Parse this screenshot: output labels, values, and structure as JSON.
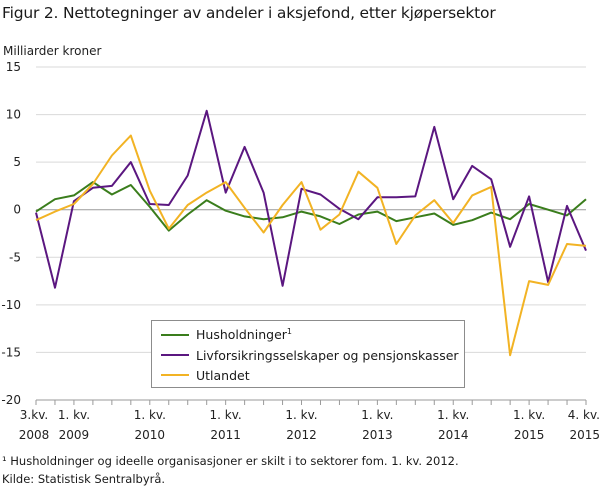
{
  "title": "Figur 2. Nettotegninger av andeler i aksjefond, etter kjøpersektor",
  "ylabel": "Milliarder  kroner",
  "footnote": "¹ Husholdninger og ideelle organisasjoner er skilt i to sektorer fom. 1. kv. 2012.",
  "source": "Kilde: Statistisk Sentralbyrå.",
  "chart_data": {
    "type": "line",
    "ylim": [
      -20,
      15
    ],
    "yticks": [
      15,
      10,
      5,
      0,
      -5,
      -10,
      -15,
      -20
    ],
    "grid": true,
    "legend_position": "bottom-center",
    "x": [
      "3.kv. 2008",
      "4.kv. 2008",
      "1.kv. 2009",
      "2.kv. 2009",
      "3.kv. 2009",
      "4.kv. 2009",
      "1.kv. 2010",
      "2.kv. 2010",
      "3.kv. 2010",
      "4.kv. 2010",
      "1.kv. 2011",
      "2.kv. 2011",
      "3.kv. 2011",
      "4.kv. 2011",
      "1.kv. 2012",
      "2.kv. 2012",
      "3.kv. 2012",
      "4.kv. 2012",
      "1.kv. 2013",
      "2.kv. 2013",
      "3.kv. 2013",
      "4.kv. 2013",
      "1.kv. 2014",
      "2.kv. 2014",
      "3.kv. 2014",
      "4.kv. 2014",
      "1.kv. 2015",
      "2.kv. 2015",
      "3.kv. 2015",
      "4.kv. 2015"
    ],
    "xtick_labels": [
      {
        "index": 0,
        "line1": "3.kv.",
        "line2": "2008"
      },
      {
        "index": 2,
        "line1": "1. kv.",
        "line2": "2009"
      },
      {
        "index": 6,
        "line1": "1. kv.",
        "line2": "2010"
      },
      {
        "index": 10,
        "line1": "1. kv.",
        "line2": "2011"
      },
      {
        "index": 14,
        "line1": "1. kv.",
        "line2": "2012"
      },
      {
        "index": 18,
        "line1": "1. kv.",
        "line2": "2013"
      },
      {
        "index": 22,
        "line1": "1. kv.",
        "line2": "2014"
      },
      {
        "index": 26,
        "line1": "1. kv.",
        "line2": "2015"
      },
      {
        "index": 29,
        "line1": "4. kv.",
        "line2": "2015"
      }
    ],
    "series": [
      {
        "name": "Husholdninger",
        "sup": "1",
        "color": "#3a7d1c",
        "values": [
          -0.2,
          1.1,
          1.5,
          2.9,
          1.6,
          2.6,
          0.3,
          -2.2,
          -0.5,
          1.0,
          -0.1,
          -0.7,
          -1.0,
          -0.8,
          -0.2,
          -0.7,
          -1.5,
          -0.5,
          -0.2,
          -1.2,
          -0.8,
          -0.4,
          -1.6,
          -1.1,
          -0.3,
          -1.0,
          0.6,
          0.0,
          -0.6,
          1.1
        ]
      },
      {
        "name": "Livforsikringsselskaper og pensjonskasser",
        "color": "#5b1780",
        "values": [
          -0.3,
          -8.2,
          0.9,
          2.3,
          2.5,
          5.0,
          0.6,
          0.5,
          3.6,
          10.4,
          1.8,
          6.6,
          1.8,
          -8.0,
          2.2,
          1.6,
          0.1,
          -1.0,
          1.3,
          1.3,
          1.4,
          8.7,
          1.1,
          4.6,
          3.2,
          -3.9,
          1.4,
          -7.6,
          0.4,
          -4.3
        ]
      },
      {
        "name": "Utlandet",
        "color": "#f2b324",
        "values": [
          -1.1,
          -0.2,
          0.6,
          2.7,
          5.7,
          7.8,
          2.0,
          -2.0,
          0.5,
          1.8,
          2.9,
          0.2,
          -2.4,
          0.5,
          2.9,
          -2.1,
          -0.5,
          4.0,
          2.3,
          -3.6,
          -0.6,
          1.0,
          -1.4,
          1.5,
          2.4,
          -15.3,
          -7.5,
          -7.9,
          -3.6,
          -3.8
        ]
      }
    ]
  }
}
